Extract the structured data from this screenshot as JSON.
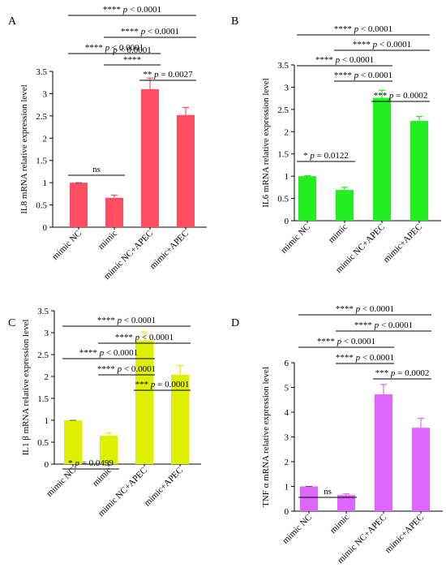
{
  "chart_data": [
    {
      "panel_letter": "A",
      "type": "bar",
      "ylabel": "IL8 mRNA relative expression level",
      "categories": [
        "mimic NC",
        "mimic",
        "mimic NC+APEC",
        "mimic+APEC"
      ],
      "values": [
        1.0,
        0.66,
        3.1,
        2.52
      ],
      "errors": [
        0.0,
        0.06,
        0.25,
        0.17
      ],
      "color": "#ff4d62",
      "ylim": [
        0,
        3.5
      ],
      "yticks": [
        "0",
        "0.5",
        "1",
        "1.5",
        "2",
        "2.5",
        "3",
        "3.5"
      ],
      "annotations": [
        {
          "from": 0,
          "to": 3,
          "stars": "****",
          "p": "p",
          "text": " < 0.0001"
        },
        {
          "from": 1,
          "to": 3,
          "stars": "****",
          "p": "p",
          "text": " < 0.0001"
        },
        {
          "from": 0,
          "to": 2,
          "stars": "****",
          "p": "p",
          "text": " < 0.0001"
        },
        {
          "from": 1,
          "to": 2,
          "stars": "****",
          "p": "p",
          "text": " < 0.0001",
          "stacked": true
        },
        {
          "from": 2,
          "to": 3,
          "stars": "**",
          "p": "p",
          "text": " = 0.0027"
        },
        {
          "from": 0,
          "to": 1,
          "stars": "",
          "p": "",
          "text": "ns"
        }
      ]
    },
    {
      "panel_letter": "B",
      "type": "bar",
      "ylabel": "IL6 mRNA relative expression level",
      "categories": [
        "mimic NC",
        "mimic",
        "mimic NC+APEC",
        "mimic+APEC"
      ],
      "values": [
        1.0,
        0.69,
        2.76,
        2.24
      ],
      "errors": [
        0.01,
        0.06,
        0.17,
        0.1
      ],
      "color": "#22ee22",
      "ylim": [
        0,
        3.5
      ],
      "yticks": [
        "0",
        "0.5",
        "1",
        "1.5",
        "2",
        "2.5",
        "3",
        "3.5"
      ],
      "annotations": [
        {
          "from": 0,
          "to": 3,
          "stars": "****",
          "p": "p",
          "text": " < 0.0001"
        },
        {
          "from": 1,
          "to": 3,
          "stars": "****",
          "p": "p",
          "text": " < 0.0001"
        },
        {
          "from": 0,
          "to": 2,
          "stars": "****",
          "p": "p",
          "text": " < 0.0001"
        },
        {
          "from": 1,
          "to": 2,
          "stars": "****",
          "p": "p",
          "text": " < 0.0001"
        },
        {
          "from": 2,
          "to": 3,
          "stars": "***",
          "p": "p",
          "text": " = 0.0002"
        },
        {
          "from": 0,
          "to": 1,
          "stars": "*",
          "p": "p",
          "text": " = 0.0122"
        }
      ]
    },
    {
      "panel_letter": "C",
      "type": "bar",
      "ylabel": "IL1 β  mRNA relative expression level",
      "categories": [
        "mimic NC",
        "mimic",
        "mimic NC+APEC",
        "mimic+APEC"
      ],
      "values": [
        1.0,
        0.65,
        2.82,
        2.04
      ],
      "errors": [
        0.0,
        0.06,
        0.2,
        0.21
      ],
      "color": "#ddf000",
      "ylim": [
        0,
        3.5
      ],
      "yticks": [
        "0",
        "0.5",
        "1",
        "1.5",
        "2",
        "2.5",
        "3",
        "3.5"
      ],
      "annotations": [
        {
          "from": 0,
          "to": 3,
          "stars": "****",
          "p": "p",
          "text": " < 0.0001"
        },
        {
          "from": 1,
          "to": 3,
          "stars": "****",
          "p": "p",
          "text": " < 0.0001"
        },
        {
          "from": 0,
          "to": 2,
          "stars": "****",
          "p": "p",
          "text": " < 0.0001"
        },
        {
          "from": 1,
          "to": 2,
          "stars": "****",
          "p": "p",
          "text": " < 0.0001"
        },
        {
          "from": 2,
          "to": 3,
          "stars": "***",
          "p": "p",
          "text": " = 0.0001"
        },
        {
          "from": 0,
          "to": 1,
          "stars": "*",
          "p": "p",
          "text": " = 0.0499"
        }
      ]
    },
    {
      "panel_letter": "D",
      "type": "bar",
      "ylabel": "TNF α  mRNA relative expression level",
      "categories": [
        "mimic NC",
        "mimic",
        "mimic NC+APEC",
        "mimic+APEC"
      ],
      "values": [
        1.0,
        0.65,
        4.72,
        3.37
      ],
      "errors": [
        0.0,
        0.05,
        0.4,
        0.38
      ],
      "color": "#dd66ff",
      "ylim": [
        0,
        6
      ],
      "yticks": [
        "0",
        "1",
        "2",
        "3",
        "4",
        "5",
        "6"
      ],
      "annotations": [
        {
          "from": 0,
          "to": 3,
          "stars": "****",
          "p": "p",
          "text": " < 0.0001"
        },
        {
          "from": 1,
          "to": 3,
          "stars": "****",
          "p": "p",
          "text": " < 0.0001"
        },
        {
          "from": 0,
          "to": 2,
          "stars": "****",
          "p": "p",
          "text": " < 0.0001"
        },
        {
          "from": 1,
          "to": 2,
          "stars": "****",
          "p": "p",
          "text": " < 0.0001"
        },
        {
          "from": 2,
          "to": 3,
          "stars": "***",
          "p": "p",
          "text": " = 0.0002"
        },
        {
          "from": 0,
          "to": 1,
          "stars": "",
          "p": "",
          "text": "ns"
        }
      ]
    }
  ]
}
